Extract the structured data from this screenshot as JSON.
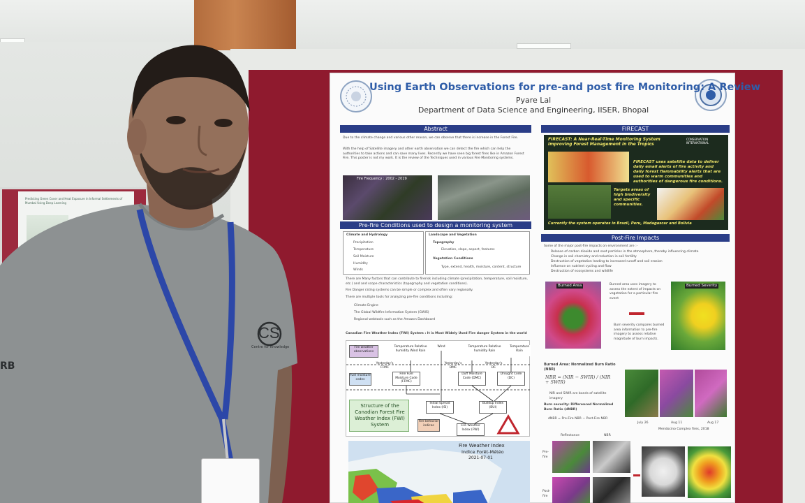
{
  "poster": {
    "title": "Using Earth Observations for pre-and post fire Monitoring: A Review",
    "author": "Pyare Lal",
    "department": "Department of Data Science and Engineering, IISER, Bhopal",
    "sections": {
      "abstract": "Abstract",
      "prefire": "Pre-fire Conditions used to design a monitoring system",
      "firecast": "FIRECAST",
      "postfire": "Post-Fire Impacts"
    },
    "abstract_text": [
      "Due to the climate change and various other reason, we can observe that there is increase in the Forest Fire.",
      "With the help of Satellite imagery and other earth observation we can detect the fire which can help the authorities to take actions and can save many lives. Recently we have seen big forest fires like in Amazon Forest Fire. This poster is not my work. It is the review of the Techniques used in various Fire Monitoring systems."
    ],
    "fire_frequency_label": "Fire Frequency : 2002 - 2019",
    "climate_box": {
      "title": "Climate and Hydrology",
      "items": [
        "Precipitation",
        "Temperature",
        "Soil Moisture",
        "Humidity",
        "Winds"
      ]
    },
    "landscape_box": {
      "title": "Landscape and Vegetation",
      "topography": "Topography",
      "topography_items": "Elevation, slope, aspect, features",
      "vegetation": "Vegetation Conditions",
      "vegetation_items": "Type, extend, health, moisture, content, structure"
    },
    "prefire_bullets": [
      "There are Many factors that can contribute to firerisk including climate (precipitation, temperature, soil moisture, etc.) and and scope characteristics (topography and vegetation conditions).",
      "Fire Danger rating systems can be simple or complex and often vary regionally.",
      "There are multiple tools for analyzing pre-fire conditions including:"
    ],
    "prefire_tools": [
      "Climate Engine",
      "The Global Wildfire Information System (GWIS)",
      "Regional webtools such as the Amazon Dashboard"
    ],
    "fwi_heading": "Canadian Fire Weather Index (FWI) System : It is Most Widely Used Fire danger System in the world",
    "fwi_diagram": {
      "fire_weather_obs": "Fire weather observations",
      "fuel_moisture_codes": "Fuel moisture codes",
      "fire_behavior_indices": "Fire behavior indices",
      "structure_label": "Structure of the Canadian Forest Fire Weather Index (FWI) System",
      "temp_rh_wind_rain": "Temperature Relative humidity Wind Rain",
      "wind": "Wind",
      "temp_rh_rain": "Temperature Relative humidity Rain",
      "temp_rain": "Temperature Rain",
      "yesterdays_ffmc": "Yesterday's FFMC",
      "yesterdays_dmc": "Yesterday's DMC",
      "yesterdays_dc": "Yesterday's DC",
      "ffmc": "Fine Fuel Moisture Code (FFMC)",
      "dmc": "Duff Moisture Code (DMC)",
      "dc": "Drought Code (DC)",
      "isi": "Initial Spread Index (ISI)",
      "bui": "Buildup Index (BUI)",
      "fwi": "Fire Weather Index (FWI)"
    },
    "fwi_map": {
      "title": "Fire Weather Index",
      "subtitle": "Indice Forêt-Météo",
      "date": "2021-07-01"
    },
    "firecast": {
      "heading": "FIRECAST: A Near-Real-Time Monitoring System Improving Forest Management in the Tropics",
      "org": "CONSERVATION INTERNATIONAL",
      "desc": "FIRECAST uses satellite data to deliver daily email alerts of fire activity and daily forest flammability alerts that are used to warm communities and authorities of dangerous fire conditions.",
      "targets": "Targets areas of high biodiversity and specific communities.",
      "operates": "Currently the system operates in Brazil, Peru, Madagascar and Bolivia"
    },
    "postfire_intro": "Some of the major post-fire impacts on environment are :-",
    "postfire_bullets": [
      "Release of carbon dioxide and soot particles in the atmosphere, thereby influencing climate",
      "Change in soil chemistry and reduction in soil fertility",
      "Destruction of vegetation leading to increased runoff and soil erosion",
      "Influence on nutrient cycling and flow",
      "Destruction of ecosystems and wildlife"
    ],
    "burned_area_label": "Burned Area",
    "burned_severity_label": "Burned Severity",
    "burned_area_text": "Burned area uses imagery to assess the extent of impacts on vegetation for a particular fire event",
    "burn_severity_text": "Burn severity compares burned area information to pre-fire imagery to assess relative magnitude of burn impacts.",
    "nbr_heading": "Burned Area: Normalized Burn Ratio (NBR)",
    "nbr_formula": "NBR = (NIR − SWIR) / (NIR + SWIR)",
    "nbr_note": "NIR and SWIR are bands of satellite imagery",
    "dnbr_heading": "Burn severity: Differenced Normalized Burn Ratio (dNBR)",
    "dnbr_formula": "dNBR = Pre-Fire NBR − Post-Fire NBR",
    "dates": [
      "July 26",
      "Aug 11",
      "Aug 17"
    ],
    "mendocino": "Mendocino Complex fires, 2018",
    "reflectance": "Reflectance",
    "nbr": "NBR",
    "pre_fire": "Pre-fire",
    "post_fire": "Post-fire"
  },
  "shirt_text": "CS",
  "shirt_text_small": "Centre for Knowledge"
}
